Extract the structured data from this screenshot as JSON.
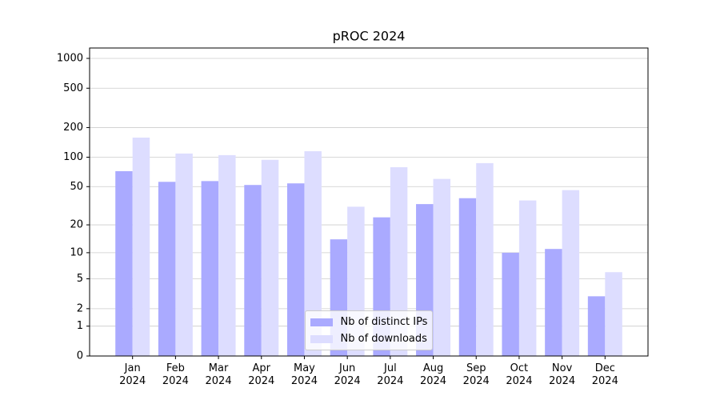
{
  "chart_data": {
    "type": "bar",
    "title": "pROC 2024",
    "categories": [
      "Jan\n2024",
      "Feb\n2024",
      "Mar\n2024",
      "Apr\n2024",
      "May\n2024",
      "Jun\n2024",
      "Jul\n2024",
      "Aug\n2024",
      "Sep\n2024",
      "Oct\n2024",
      "Nov\n2024",
      "Dec\n2024"
    ],
    "series": [
      {
        "name": "Nb of distinct IPs",
        "color": "#aaaaff",
        "values": [
          72,
          56,
          57,
          52,
          54,
          14,
          24,
          33,
          38,
          10,
          11,
          3
        ]
      },
      {
        "name": "Nb of downloads",
        "color": "#ddddff",
        "values": [
          158,
          109,
          105,
          94,
          115,
          31,
          79,
          60,
          87,
          36,
          46,
          6
        ]
      }
    ],
    "yscale": "log1p",
    "ylim": [
      0,
      1273
    ],
    "yticks": [
      0,
      1,
      2,
      5,
      10,
      20,
      50,
      100,
      200,
      500,
      1000
    ],
    "grid": true,
    "legend": "lower center"
  }
}
